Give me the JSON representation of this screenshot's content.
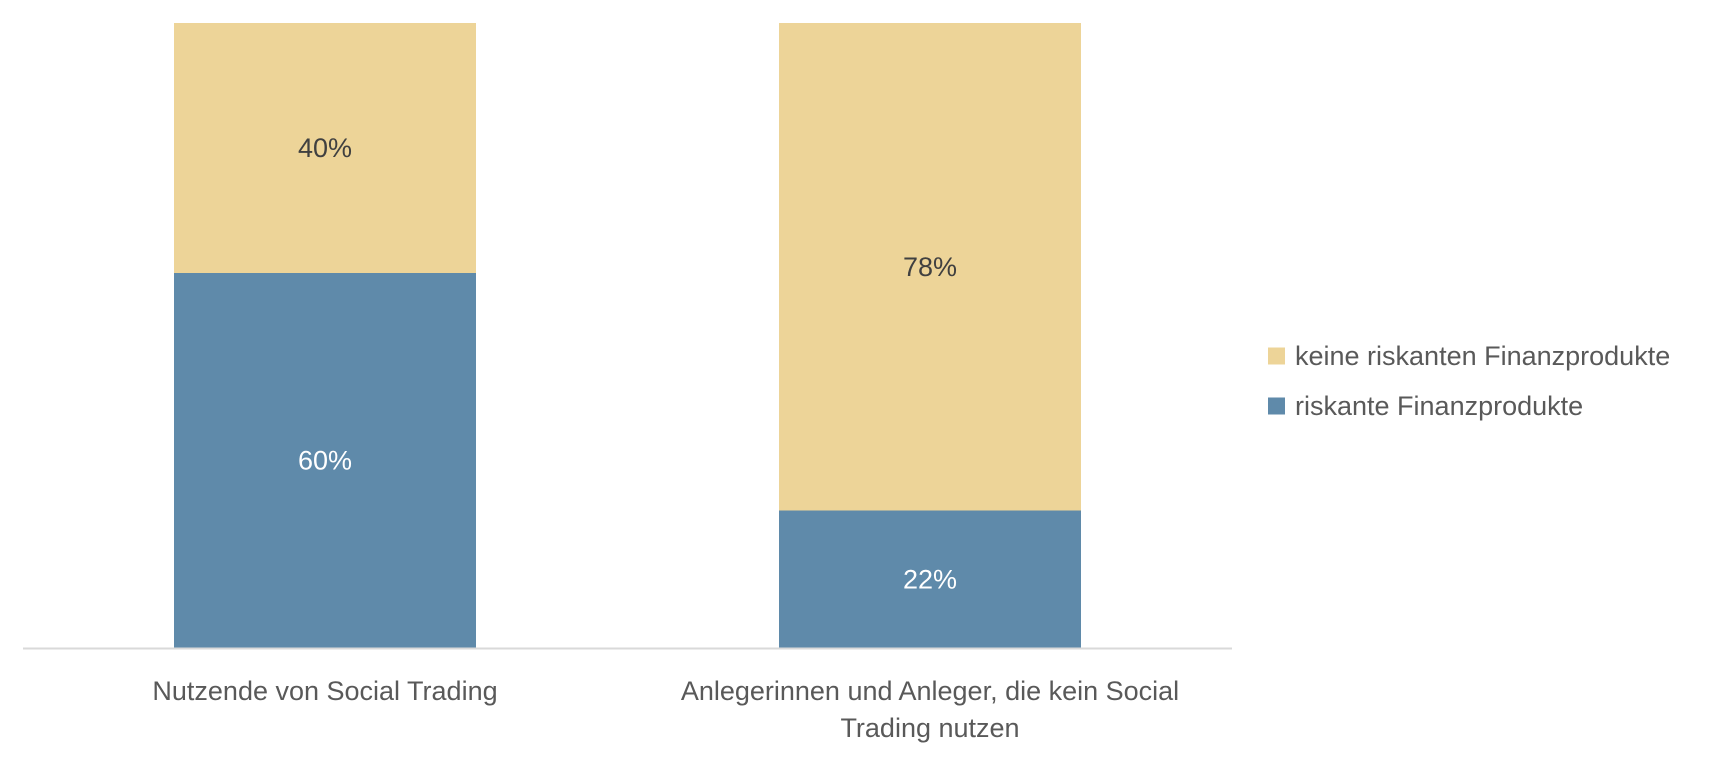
{
  "chart_data": {
    "type": "bar",
    "stacked": true,
    "percent_stacked": true,
    "categories": [
      [
        "Nutzende von Social Trading"
      ],
      [
        "Anlegerinnen und Anleger, die kein Social",
        "Trading nutzen"
      ]
    ],
    "series": [
      {
        "name": "riskante Finanzprodukte",
        "values": [
          60,
          22
        ],
        "labels": [
          "60%",
          "22%"
        ],
        "color": "#5F8AAA",
        "label_color": "#FFFFFF"
      },
      {
        "name": "keine riskanten Finanzprodukte",
        "values": [
          40,
          78
        ],
        "labels": [
          "40%",
          "78%"
        ],
        "color": "#EDD498",
        "label_color": "#404040"
      }
    ],
    "legend_order": [
      1,
      0
    ],
    "legend_position": "right",
    "ylim": [
      0,
      100
    ],
    "grid": false,
    "axis_color": "#D9D9D9",
    "title": "",
    "xlabel": "",
    "ylabel": ""
  }
}
